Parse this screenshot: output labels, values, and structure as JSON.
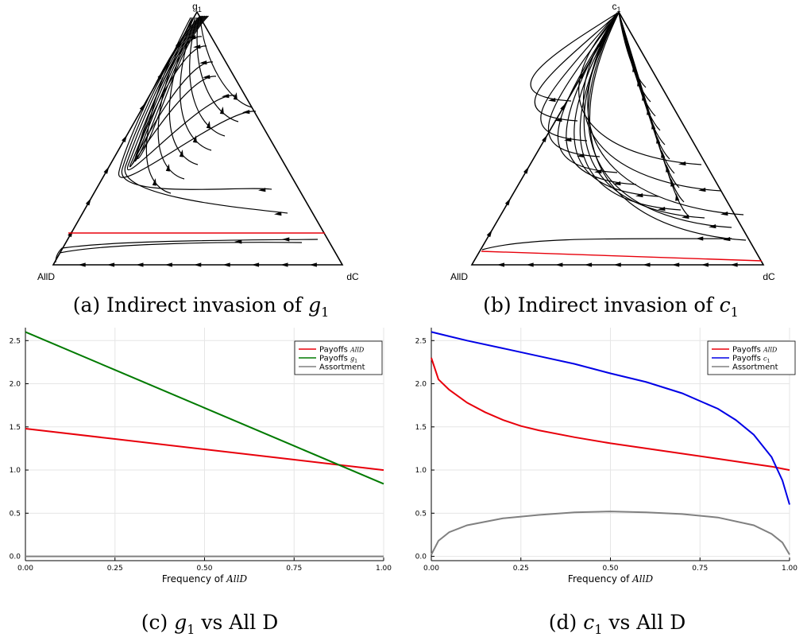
{
  "ternary": [
    {
      "top_vertex": "g",
      "top_vertex_sub": "1",
      "left_vertex": "AllD",
      "right_vertex": "dC",
      "caption_prefix": "(a) Indirect invasion of ",
      "caption_var": "g",
      "caption_sub": "1"
    },
    {
      "top_vertex": "c",
      "top_vertex_sub": "1",
      "left_vertex": "AllD",
      "right_vertex": "dC",
      "caption_prefix": "(b) Indirect invasion of ",
      "caption_var": "c",
      "caption_sub": "1"
    }
  ],
  "chart_data": [
    {
      "type": "line",
      "xlabel": "Frequency of AllD",
      "xlim": [
        0,
        1
      ],
      "ylim": [
        -0.05,
        2.65
      ],
      "x_ticks": [
        "0.00",
        "0.25",
        "0.50",
        "0.75",
        "1.00"
      ],
      "y_ticks": [
        "0.0",
        "0.5",
        "1.0",
        "1.5",
        "2.0",
        "2.5"
      ],
      "grid": true,
      "legend_position": "top-right",
      "caption_var": "g",
      "caption_sub": "1",
      "caption_suffix": " vs All D",
      "series": [
        {
          "name": "Payoffs AllD",
          "color": "#e8000b",
          "x": [
            0.0,
            0.25,
            0.5,
            0.75,
            1.0
          ],
          "y": [
            1.48,
            1.36,
            1.24,
            1.12,
            1.0
          ]
        },
        {
          "name": "Payoffs g1",
          "color": "#007a00",
          "x": [
            0.0,
            0.25,
            0.5,
            0.75,
            1.0
          ],
          "y": [
            2.6,
            2.16,
            1.72,
            1.28,
            0.84
          ]
        },
        {
          "name": "Assortment",
          "color": "#808080",
          "x": [
            0.0,
            0.25,
            0.5,
            0.75,
            1.0
          ],
          "y": [
            0.0,
            0.0,
            0.0,
            0.0,
            0.0
          ]
        }
      ]
    },
    {
      "type": "line",
      "xlabel": "Frequency of AllD",
      "xlim": [
        0,
        1
      ],
      "ylim": [
        -0.05,
        2.65
      ],
      "x_ticks": [
        "0.00",
        "0.25",
        "0.50",
        "0.75",
        "1.00"
      ],
      "y_ticks": [
        "0.0",
        "0.5",
        "1.0",
        "1.5",
        "2.0",
        "2.5"
      ],
      "grid": true,
      "legend_position": "top-right",
      "caption_var": "c",
      "caption_sub": "1",
      "caption_suffix": " vs All D",
      "series": [
        {
          "name": "Payoffs AllD",
          "color": "#e8000b",
          "x": [
            0.0,
            0.02,
            0.05,
            0.1,
            0.15,
            0.2,
            0.25,
            0.3,
            0.4,
            0.5,
            0.6,
            0.7,
            0.8,
            0.9,
            0.95,
            1.0
          ],
          "y": [
            2.3,
            2.05,
            1.93,
            1.78,
            1.67,
            1.58,
            1.51,
            1.46,
            1.38,
            1.31,
            1.25,
            1.19,
            1.13,
            1.07,
            1.04,
            1.0
          ]
        },
        {
          "name": "Payoffs c1",
          "color": "#0000e6",
          "x": [
            0.0,
            0.05,
            0.1,
            0.2,
            0.3,
            0.4,
            0.5,
            0.6,
            0.7,
            0.8,
            0.85,
            0.9,
            0.95,
            0.98,
            1.0
          ],
          "y": [
            2.6,
            2.55,
            2.5,
            2.41,
            2.32,
            2.23,
            2.12,
            2.02,
            1.89,
            1.71,
            1.58,
            1.41,
            1.15,
            0.88,
            0.6
          ]
        },
        {
          "name": "Assortment",
          "color": "#808080",
          "x": [
            0.0,
            0.02,
            0.05,
            0.1,
            0.2,
            0.3,
            0.4,
            0.5,
            0.6,
            0.7,
            0.8,
            0.9,
            0.95,
            0.98,
            1.0
          ],
          "y": [
            0.02,
            0.18,
            0.28,
            0.36,
            0.44,
            0.48,
            0.51,
            0.52,
            0.51,
            0.49,
            0.45,
            0.36,
            0.26,
            0.16,
            0.02
          ]
        }
      ]
    }
  ]
}
